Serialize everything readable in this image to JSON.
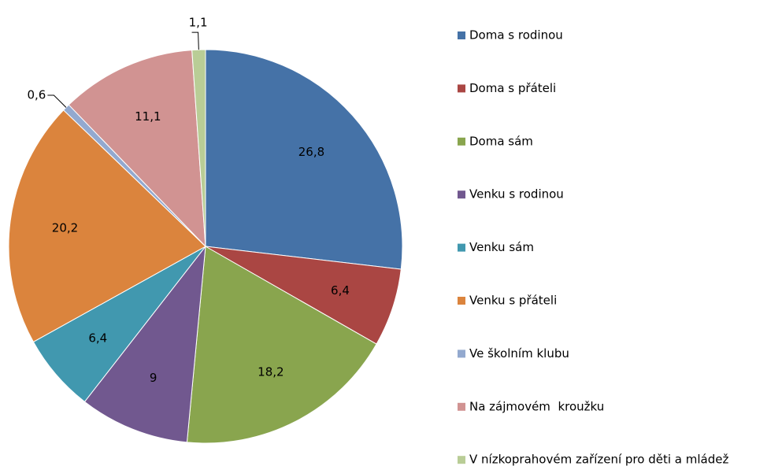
{
  "chart_data": {
    "type": "pie",
    "categories": [
      "Doma s rodinou",
      "Doma s přáteli",
      "Doma sám",
      "Venku s rodinou",
      "Venku sám",
      "Venku s přáteli",
      "Ve školním klubu",
      "Na zájmovém  kroužku",
      "V nízkoprahovém zařízení pro děti a mládež"
    ],
    "values": [
      26.8,
      6.4,
      18.2,
      9,
      6.4,
      20.2,
      0.6,
      11.1,
      1.1
    ],
    "value_labels": [
      "26,8",
      "6,4",
      "18,2",
      "9",
      "6,4",
      "20,2",
      "0,6",
      "11,1",
      "1,1"
    ],
    "colors": [
      "#4572a7",
      "#aa4643",
      "#89a54e",
      "#71588f",
      "#4198af",
      "#db843d",
      "#93a9cf",
      "#d19392",
      "#b9cd96"
    ],
    "legend": "right"
  }
}
